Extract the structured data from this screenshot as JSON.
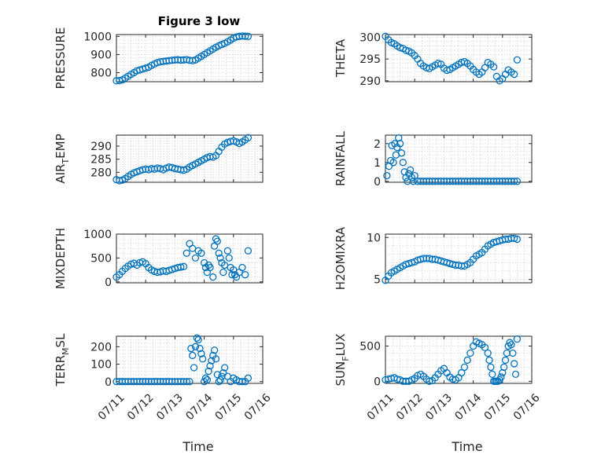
{
  "figure_title": "Figure 3 low",
  "xlabel": "Time",
  "colors": {
    "marker": "#0072BD",
    "axis": "#262626",
    "grid": "#d0d0d0"
  },
  "chart_data": [
    {
      "type": "scatter",
      "title": "Figure 3 low",
      "ylabel": "PRESSURE",
      "ylabel_parts": [
        "PRESSURE"
      ],
      "ylim": [
        750,
        1010
      ],
      "yticks": [
        800,
        900,
        1000
      ],
      "ytick_labels": [
        "800",
        "900",
        "1000"
      ],
      "xlim": [
        0,
        5
      ],
      "xticks": [
        0,
        1,
        2,
        3,
        4,
        5
      ],
      "xtick_labels": [],
      "grid": true,
      "x": [
        0.0,
        0.1,
        0.2,
        0.3,
        0.4,
        0.5,
        0.6,
        0.7,
        0.8,
        0.9,
        1.0,
        1.1,
        1.2,
        1.3,
        1.4,
        1.5,
        1.6,
        1.7,
        1.8,
        1.9,
        2.0,
        2.1,
        2.2,
        2.3,
        2.4,
        2.5,
        2.6,
        2.7,
        2.8,
        2.9,
        3.0,
        3.1,
        3.2,
        3.3,
        3.4,
        3.5,
        3.6,
        3.7,
        3.8,
        3.9,
        4.0,
        4.1,
        4.2,
        4.3,
        4.4,
        4.5
      ],
      "y": [
        755,
        756,
        760,
        770,
        780,
        790,
        800,
        810,
        815,
        820,
        825,
        830,
        840,
        848,
        855,
        860,
        862,
        864,
        866,
        868,
        870,
        871,
        869,
        870,
        872,
        868,
        866,
        870,
        880,
        890,
        900,
        910,
        920,
        930,
        940,
        948,
        955,
        962,
        970,
        980,
        990,
        997,
        1000,
        1002,
        1001,
        1000
      ]
    },
    {
      "type": "scatter",
      "ylabel": "THETA",
      "ylabel_parts": [
        "THETA"
      ],
      "ylim": [
        289.8,
        300.6
      ],
      "yticks": [
        290,
        295,
        300
      ],
      "ytick_labels": [
        "290",
        "295",
        "300"
      ],
      "xlim": [
        0,
        5
      ],
      "xticks": [
        0,
        1,
        2,
        3,
        4,
        5
      ],
      "xtick_labels": [],
      "grid": true,
      "x": [
        0.0,
        0.1,
        0.2,
        0.3,
        0.4,
        0.5,
        0.6,
        0.7,
        0.8,
        0.9,
        1.0,
        1.1,
        1.2,
        1.3,
        1.4,
        1.5,
        1.6,
        1.7,
        1.8,
        1.9,
        2.0,
        2.1,
        2.2,
        2.3,
        2.4,
        2.5,
        2.6,
        2.7,
        2.8,
        2.9,
        3.0,
        3.1,
        3.2,
        3.3,
        3.4,
        3.5,
        3.6,
        3.7,
        3.8,
        3.9,
        4.0,
        4.1,
        4.2,
        4.3,
        4.4,
        4.5
      ],
      "y": [
        300.2,
        299.4,
        298.8,
        298.5,
        298.0,
        297.6,
        297.4,
        297.0,
        296.8,
        296.4,
        295.8,
        295.0,
        294.0,
        293.4,
        293.0,
        292.8,
        293.2,
        293.6,
        294.0,
        293.8,
        292.9,
        292.4,
        292.6,
        293.0,
        293.4,
        293.8,
        294.2,
        294.4,
        294.0,
        293.4,
        292.6,
        292.0,
        291.5,
        292.0,
        293.0,
        294.2,
        293.8,
        293.2,
        291.0,
        290.0,
        290.5,
        291.5,
        292.5,
        292.0,
        291.5,
        294.8
      ]
    },
    {
      "type": "scatter",
      "ylabel": "AIR_TEMP",
      "ylabel_parts": [
        "AIR",
        "T",
        "EMP"
      ],
      "ylim": [
        276.2,
        294.2
      ],
      "yticks": [
        280,
        285,
        290
      ],
      "ytick_labels": [
        "280",
        "285",
        "290"
      ],
      "xlim": [
        0,
        5
      ],
      "xticks": [
        0,
        1,
        2,
        3,
        4,
        5
      ],
      "xtick_labels": [],
      "grid": true,
      "x": [
        0.0,
        0.1,
        0.2,
        0.3,
        0.4,
        0.5,
        0.6,
        0.7,
        0.8,
        0.9,
        1.0,
        1.1,
        1.2,
        1.3,
        1.4,
        1.5,
        1.6,
        1.7,
        1.8,
        1.9,
        2.0,
        2.1,
        2.2,
        2.3,
        2.4,
        2.5,
        2.6,
        2.7,
        2.8,
        2.9,
        3.0,
        3.1,
        3.2,
        3.3,
        3.4,
        3.5,
        3.6,
        3.7,
        3.8,
        3.9,
        4.0,
        4.1,
        4.2,
        4.3,
        4.4,
        4.5
      ],
      "y": [
        277.2,
        276.8,
        277.0,
        277.6,
        278.4,
        279.2,
        279.8,
        280.2,
        280.6,
        281.0,
        281.2,
        281.0,
        281.4,
        281.2,
        281.6,
        281.4,
        281.0,
        281.6,
        282.0,
        281.8,
        281.4,
        281.2,
        281.0,
        280.8,
        281.2,
        282.0,
        282.6,
        283.2,
        283.8,
        284.4,
        285.0,
        285.6,
        286.0,
        285.8,
        286.4,
        288.0,
        289.6,
        290.8,
        291.4,
        291.8,
        292.0,
        291.6,
        291.0,
        291.6,
        292.4,
        293.2
      ]
    },
    {
      "type": "scatter",
      "ylabel": "RAINFALL",
      "ylabel_parts": [
        "RAINFALL"
      ],
      "ylim": [
        -0.05,
        2.45
      ],
      "yticks": [
        0,
        1,
        2
      ],
      "ytick_labels": [
        "0",
        "1",
        "2"
      ],
      "xlim": [
        0,
        5
      ],
      "xticks": [
        0,
        1,
        2,
        3,
        4,
        5
      ],
      "xtick_labels": [],
      "grid": true,
      "x": [
        0.05,
        0.12,
        0.18,
        0.22,
        0.27,
        0.32,
        0.36,
        0.4,
        0.45,
        0.5,
        0.55,
        0.6,
        0.65,
        0.7,
        0.75,
        0.8,
        0.85,
        0.9,
        0.95,
        1.0,
        1.1,
        1.2,
        1.3,
        1.4,
        1.5,
        1.6,
        1.7,
        1.8,
        1.9,
        2.0,
        2.1,
        2.2,
        2.3,
        2.4,
        2.5,
        2.6,
        2.7,
        2.8,
        2.9,
        3.0,
        3.1,
        3.2,
        3.3,
        3.4,
        3.5,
        3.6,
        3.7,
        3.8,
        3.9,
        4.0,
        4.1,
        4.2,
        4.3,
        4.4,
        4.5
      ],
      "y": [
        0.3,
        0.8,
        1.1,
        1.9,
        1.0,
        2.0,
        1.4,
        1.8,
        2.3,
        2.0,
        1.5,
        1.0,
        0.5,
        0.2,
        0.0,
        0.4,
        0.6,
        0.2,
        0.0,
        0.3,
        0,
        0,
        0,
        0,
        0,
        0,
        0,
        0,
        0,
        0,
        0,
        0,
        0,
        0,
        0,
        0,
        0,
        0,
        0,
        0,
        0,
        0,
        0,
        0,
        0,
        0,
        0,
        0,
        0,
        0,
        0,
        0,
        0,
        0,
        0
      ]
    },
    {
      "type": "scatter",
      "ylabel": "MIXDEPTH",
      "ylabel_parts": [
        "MIXDEPTH"
      ],
      "ylim": [
        -20,
        1000
      ],
      "yticks": [
        0,
        500,
        1000
      ],
      "ytick_labels": [
        "0",
        "500",
        "1000"
      ],
      "xlim": [
        0,
        5
      ],
      "xticks": [
        0,
        1,
        2,
        3,
        4,
        5
      ],
      "xtick_labels": [],
      "grid": true,
      "x": [
        0.0,
        0.1,
        0.2,
        0.3,
        0.4,
        0.5,
        0.6,
        0.7,
        0.8,
        0.9,
        1.0,
        1.1,
        1.2,
        1.3,
        1.4,
        1.5,
        1.6,
        1.7,
        1.8,
        1.9,
        2.0,
        2.1,
        2.2,
        2.3,
        2.4,
        2.5,
        2.6,
        2.7,
        2.8,
        2.9,
        3.0,
        3.05,
        3.1,
        3.15,
        3.2,
        3.3,
        3.35,
        3.4,
        3.45,
        3.5,
        3.55,
        3.6,
        3.65,
        3.7,
        3.8,
        3.85,
        3.9,
        3.95,
        4.0,
        4.05,
        4.1,
        4.2,
        4.3,
        4.4,
        4.5
      ],
      "y": [
        100,
        150,
        220,
        280,
        330,
        370,
        390,
        350,
        400,
        420,
        380,
        300,
        250,
        220,
        200,
        210,
        230,
        220,
        240,
        260,
        280,
        300,
        310,
        320,
        600,
        800,
        700,
        500,
        650,
        600,
        400,
        300,
        200,
        350,
        300,
        100,
        750,
        900,
        850,
        600,
        500,
        400,
        200,
        350,
        650,
        500,
        300,
        150,
        250,
        150,
        100,
        200,
        300,
        150,
        650
      ]
    },
    {
      "type": "scatter",
      "ylabel": "H2OMIXRA",
      "ylabel_parts": [
        "H2OMIXRA"
      ],
      "ylim": [
        4.6,
        10.4
      ],
      "yticks": [
        5,
        10
      ],
      "ytick_labels": [
        "5",
        "10"
      ],
      "xlim": [
        0,
        5
      ],
      "xticks": [
        0,
        1,
        2,
        3,
        4,
        5
      ],
      "xtick_labels": [],
      "grid": true,
      "x": [
        0.0,
        0.1,
        0.2,
        0.3,
        0.4,
        0.5,
        0.6,
        0.7,
        0.8,
        0.9,
        1.0,
        1.1,
        1.2,
        1.3,
        1.4,
        1.5,
        1.6,
        1.7,
        1.8,
        1.9,
        2.0,
        2.1,
        2.2,
        2.3,
        2.4,
        2.5,
        2.6,
        2.7,
        2.8,
        2.9,
        3.0,
        3.1,
        3.2,
        3.3,
        3.4,
        3.5,
        3.6,
        3.7,
        3.8,
        3.9,
        4.0,
        4.1,
        4.2,
        4.3,
        4.4,
        4.5
      ],
      "y": [
        4.9,
        5.4,
        5.8,
        6.0,
        6.2,
        6.4,
        6.6,
        6.8,
        6.9,
        7.0,
        7.1,
        7.3,
        7.4,
        7.5,
        7.5,
        7.5,
        7.4,
        7.4,
        7.3,
        7.2,
        7.1,
        7.0,
        6.9,
        6.8,
        6.7,
        6.7,
        6.6,
        6.6,
        6.8,
        7.0,
        7.4,
        7.8,
        8.0,
        8.2,
        8.6,
        9.0,
        9.2,
        9.4,
        9.5,
        9.6,
        9.7,
        9.8,
        9.8,
        9.9,
        9.9,
        9.8
      ]
    },
    {
      "type": "scatter",
      "ylabel": "TERR_MSL",
      "ylabel_parts": [
        "TERR",
        "M",
        "SL"
      ],
      "ylim": [
        -10,
        260
      ],
      "yticks": [
        0,
        100,
        200
      ],
      "ytick_labels": [
        "0",
        "100",
        "200"
      ],
      "xlim": [
        0,
        5
      ],
      "xticks": [
        0,
        1,
        2,
        3,
        4,
        5
      ],
      "xtick_labels": [
        "07/11",
        "07/12",
        "07/13",
        "07/14",
        "07/15",
        "07/16"
      ],
      "grid": true,
      "x": [
        0.0,
        0.1,
        0.2,
        0.3,
        0.4,
        0.5,
        0.6,
        0.7,
        0.8,
        0.9,
        1.0,
        1.1,
        1.2,
        1.3,
        1.4,
        1.5,
        1.6,
        1.7,
        1.8,
        1.9,
        2.0,
        2.1,
        2.2,
        2.3,
        2.4,
        2.5,
        2.55,
        2.6,
        2.65,
        2.7,
        2.75,
        2.8,
        2.85,
        2.9,
        2.95,
        3.0,
        3.05,
        3.1,
        3.15,
        3.2,
        3.25,
        3.3,
        3.35,
        3.4,
        3.45,
        3.5,
        3.55,
        3.6,
        3.65,
        3.7,
        3.8,
        3.9,
        4.0,
        4.1,
        4.2,
        4.3,
        4.4,
        4.5
      ],
      "y": [
        0,
        0,
        0,
        0,
        0,
        0,
        0,
        0,
        0,
        0,
        0,
        0,
        0,
        0,
        0,
        0,
        0,
        0,
        0,
        0,
        0,
        0,
        0,
        0,
        0,
        0,
        190,
        150,
        80,
        200,
        250,
        240,
        190,
        160,
        130,
        0,
        20,
        10,
        60,
        90,
        120,
        150,
        180,
        130,
        40,
        0,
        10,
        30,
        50,
        80,
        30,
        0,
        20,
        10,
        0,
        0,
        0,
        20
      ]
    },
    {
      "type": "scatter",
      "ylabel": "SUN_FLUX",
      "ylabel_parts": [
        "SUN",
        "F",
        "LUX"
      ],
      "ylim": [
        -30,
        640
      ],
      "yticks": [
        0,
        500
      ],
      "ytick_labels": [
        "0",
        "500"
      ],
      "xlim": [
        0,
        5
      ],
      "xticks": [
        0,
        1,
        2,
        3,
        4,
        5
      ],
      "xtick_labels": [
        "07/11",
        "07/12",
        "07/13",
        "07/14",
        "07/15",
        "07/16"
      ],
      "grid": true,
      "x": [
        0.0,
        0.1,
        0.2,
        0.3,
        0.4,
        0.5,
        0.6,
        0.7,
        0.8,
        0.9,
        1.0,
        1.1,
        1.2,
        1.3,
        1.4,
        1.5,
        1.6,
        1.7,
        1.8,
        1.9,
        2.0,
        2.1,
        2.2,
        2.3,
        2.4,
        2.5,
        2.6,
        2.7,
        2.8,
        2.9,
        3.0,
        3.1,
        3.2,
        3.3,
        3.4,
        3.5,
        3.55,
        3.6,
        3.65,
        3.7,
        3.75,
        3.8,
        3.85,
        3.9,
        3.95,
        4.0,
        4.05,
        4.1,
        4.15,
        4.2,
        4.25,
        4.3,
        4.35,
        4.4,
        4.45,
        4.5
      ],
      "y": [
        20,
        30,
        40,
        50,
        30,
        20,
        0,
        0,
        0,
        20,
        40,
        80,
        100,
        70,
        30,
        0,
        10,
        50,
        100,
        150,
        180,
        120,
        60,
        30,
        20,
        50,
        120,
        200,
        300,
        400,
        500,
        560,
        540,
        520,
        480,
        400,
        300,
        200,
        100,
        0,
        0,
        0,
        0,
        20,
        60,
        120,
        200,
        300,
        400,
        500,
        550,
        520,
        400,
        250,
        100,
        600
      ]
    }
  ]
}
